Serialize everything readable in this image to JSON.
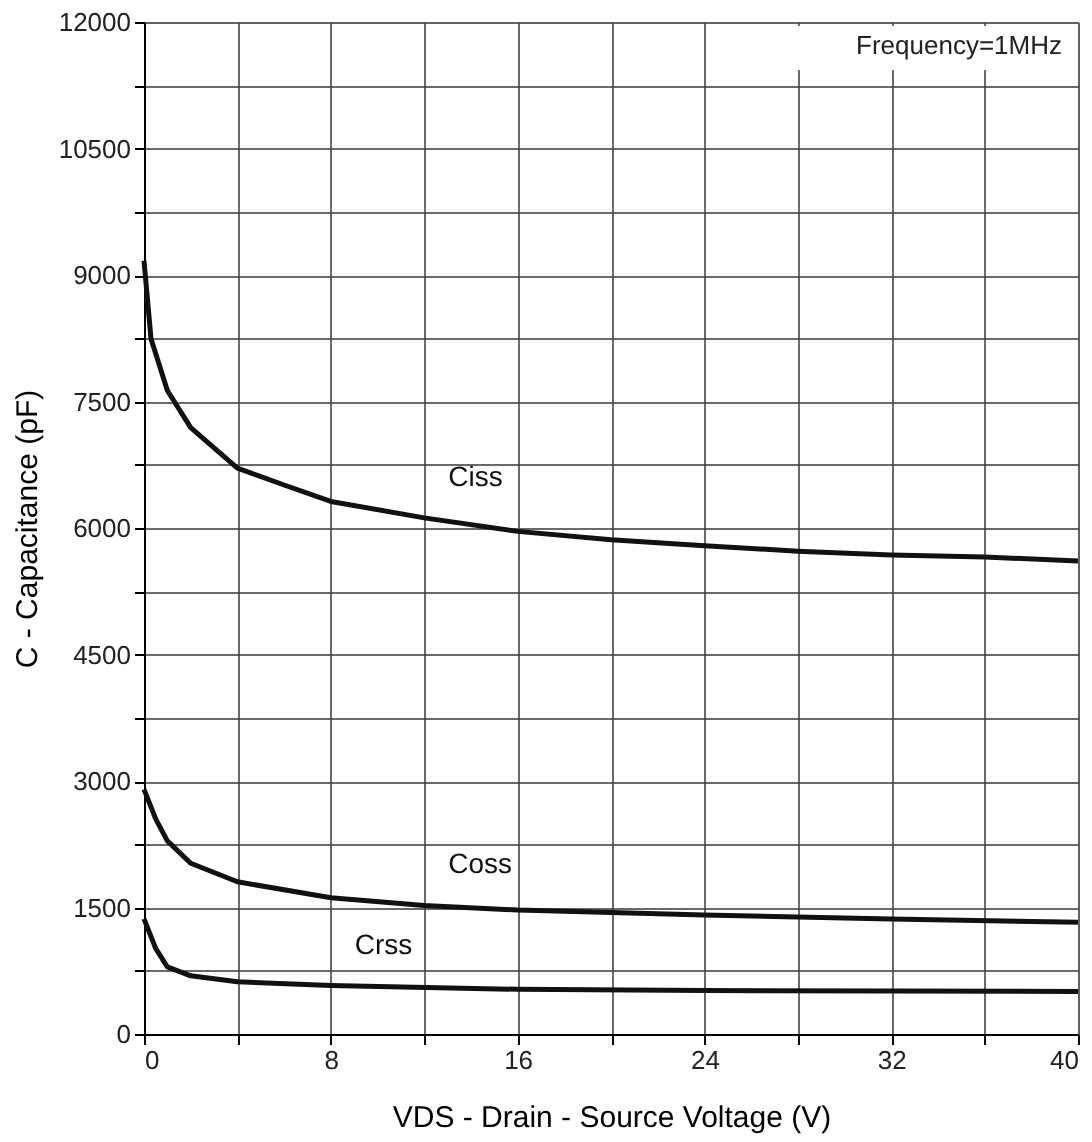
{
  "chart_data": {
    "type": "line",
    "xlabel": "VDS - Drain - Source Voltage (V)",
    "ylabel": "C - Capacitance (pF)",
    "annotations": [
      "Frequency=1MHz"
    ],
    "xlim": [
      0,
      40
    ],
    "ylim": [
      0,
      12000
    ],
    "xticks": [
      0,
      {
        "value": 4,
        "label": null
      },
      8,
      {
        "value": 12,
        "label": null
      },
      16,
      {
        "value": 20,
        "label": null
      },
      24,
      {
        "value": 28,
        "label": null
      },
      32,
      {
        "value": 36,
        "label": null
      },
      40
    ],
    "yticks": [
      0,
      {
        "value": 750,
        "label": null
      },
      1500,
      {
        "value": 2250,
        "label": null
      },
      3000,
      {
        "value": 3750,
        "label": null
      },
      4500,
      {
        "value": 5250,
        "label": null
      },
      6000,
      {
        "value": 6750,
        "label": null
      },
      7500,
      {
        "value": 8250,
        "label": null
      },
      9000,
      {
        "value": 9750,
        "label": null
      },
      10500,
      {
        "value": 11250,
        "label": null
      },
      12000
    ],
    "grid": true,
    "marker": "none",
    "line_style": "solid",
    "series": [
      {
        "name": "Ciss",
        "color": "#111111",
        "x": [
          0,
          0.3,
          1,
          2,
          4,
          6,
          8,
          12,
          16,
          20,
          24,
          28,
          32,
          36,
          40
        ],
        "values": [
          9170,
          8245,
          7630,
          7190,
          6710,
          6510,
          6315,
          6120,
          5960,
          5860,
          5790,
          5725,
          5680,
          5655,
          5610
        ]
      },
      {
        "name": "Coss",
        "color": "#111111",
        "x": [
          0,
          0.5,
          1,
          2,
          4,
          8,
          12,
          16,
          24,
          32,
          40
        ],
        "values": [
          2900,
          2550,
          2290,
          2025,
          1805,
          1615,
          1525,
          1470,
          1410,
          1365,
          1325
        ]
      },
      {
        "name": "Crss",
        "color": "#111111",
        "x": [
          0,
          0.5,
          1,
          2,
          4,
          8,
          16,
          24,
          40
        ],
        "values": [
          1365,
          1015,
          795,
          690,
          620,
          575,
          530,
          515,
          505
        ]
      }
    ]
  }
}
